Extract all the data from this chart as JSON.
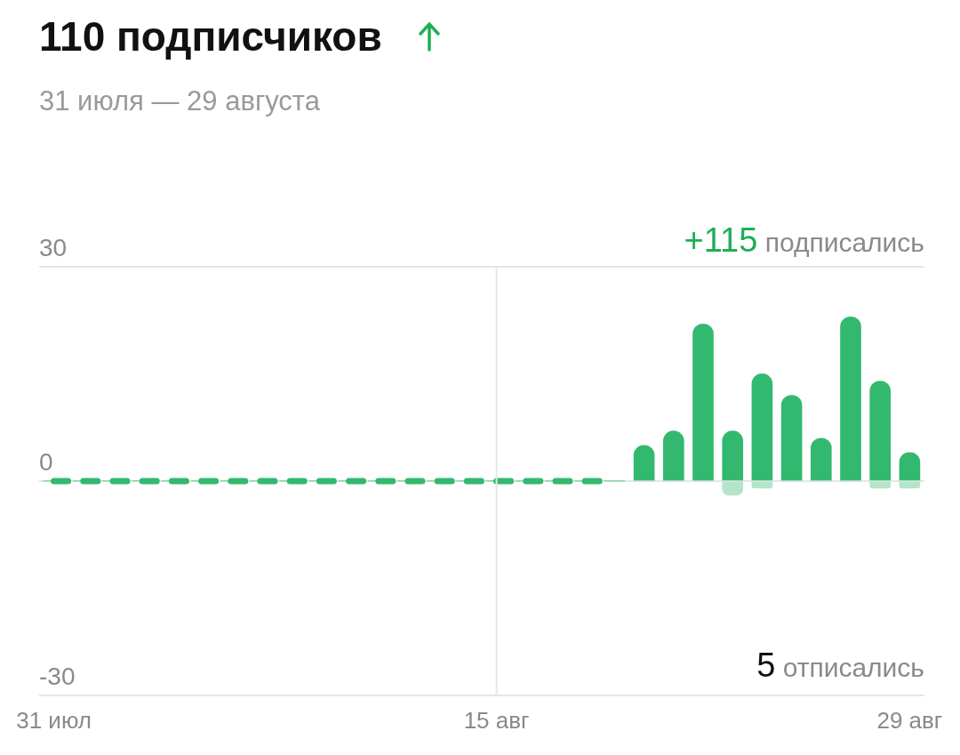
{
  "chart_data": {
    "type": "bar",
    "title": "110 подписчиков",
    "subtitle": "31 июля — 29 августа",
    "categories": [
      "31 июл",
      null,
      null,
      null,
      null,
      null,
      null,
      null,
      null,
      null,
      null,
      null,
      null,
      null,
      null,
      "15 авг",
      null,
      null,
      null,
      null,
      null,
      null,
      null,
      null,
      null,
      null,
      null,
      null,
      null,
      "29 авг"
    ],
    "series": [
      {
        "color": "#33b96f",
        "values": [
          0,
          0,
          0,
          0,
          0,
          0,
          0,
          0,
          0,
          0,
          0,
          0,
          0,
          0,
          0,
          0,
          0,
          0,
          0,
          0,
          5,
          7,
          22,
          7,
          15,
          12,
          6,
          23,
          14,
          4
        ]
      },
      {
        "type": "line",
        "line_style": "dashed",
        "marker": "none",
        "color": "#33b96f",
        "values": [
          0,
          0,
          0,
          0,
          0,
          0,
          0,
          0,
          0,
          0,
          0,
          0,
          0,
          0,
          0,
          0,
          0,
          0,
          0,
          0,
          null,
          null,
          null,
          null,
          null,
          null,
          null,
          null,
          null,
          null
        ]
      },
      {
        "color": "#b4e5c8",
        "values": [
          0,
          0,
          0,
          0,
          0,
          0,
          0,
          0,
          0,
          0,
          0,
          0,
          0,
          0,
          0,
          0,
          0,
          0,
          0,
          0,
          0,
          0,
          0,
          -2,
          -1,
          0,
          0,
          0,
          -1,
          -1
        ]
      }
    ],
    "ylim": [
      -30,
      30
    ],
    "yticks": [
      -30,
      0,
      30
    ],
    "grid": "y",
    "ref_lines": [
      {
        "axis": "x",
        "value": "15 авг",
        "color": "#e6e6e6"
      }
    ],
    "annotations": [
      "+115 подписались",
      "5 отписались"
    ]
  }
}
